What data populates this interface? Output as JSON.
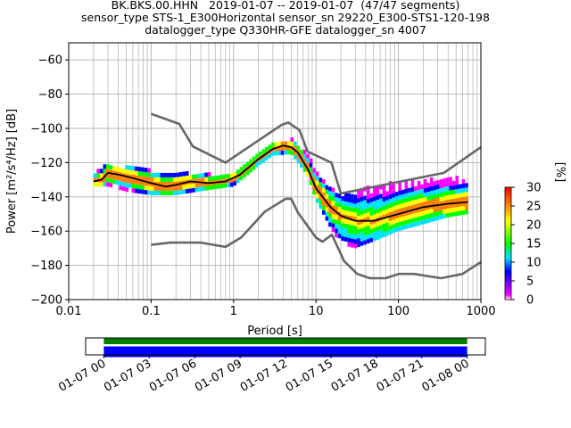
{
  "title_lines": [
    "BK.BKS.00.HHN   2019-01-07 -- 2019-01-07  (47/47 segments)",
    "sensor_type STS-1_E300Horizontal sensor_sn 29220_E300-STS1-120-198",
    "datalogger_type Q330HR-GFE datalogger_sn 4007"
  ],
  "chart_data": [
    {
      "type": "heatmap",
      "xlabel": "Period [s]",
      "ylabel": "Power [m²/s⁴/Hz] [dB]",
      "xscale": "log",
      "xlim": [
        0.01,
        1000
      ],
      "ylim": [
        -200,
        -50
      ],
      "x_ticks": [
        {
          "value": 0.01,
          "label": "0.01"
        },
        {
          "value": 0.1,
          "label": "0.1"
        },
        {
          "value": 1,
          "label": "1"
        },
        {
          "value": 10,
          "label": "10"
        },
        {
          "value": 100,
          "label": "100"
        },
        {
          "value": 1000,
          "label": "1000"
        }
      ],
      "y_ticks": [
        {
          "value": -60,
          "label": "−60"
        },
        {
          "value": -80,
          "label": "−80"
        },
        {
          "value": -100,
          "label": "−100"
        },
        {
          "value": -120,
          "label": "−120"
        },
        {
          "value": -140,
          "label": "−140"
        },
        {
          "value": -160,
          "label": "−160"
        },
        {
          "value": -180,
          "label": "−180"
        },
        {
          "value": -200,
          "label": "−200"
        }
      ],
      "grid": true,
      "colorbar": {
        "label": "[%]",
        "range": [
          0,
          30
        ],
        "ticks": [
          {
            "value": 0,
            "label": "0"
          },
          {
            "value": 5,
            "label": "5"
          },
          {
            "value": 10,
            "label": "10"
          },
          {
            "value": 15,
            "label": "15"
          },
          {
            "value": 20,
            "label": "20"
          },
          {
            "value": 25,
            "label": "25"
          },
          {
            "value": 30,
            "label": "30"
          }
        ],
        "colors": [
          "#ffffff",
          "#ff00ff",
          "#0000ff",
          "#00e0ff",
          "#00ff00",
          "#ffff00",
          "#ff7f00",
          "#ff0000"
        ]
      },
      "noise_model_high": {
        "x": [
          0.1,
          0.22,
          0.32,
          0.8,
          3.8,
          4.6,
          6.3,
          7.9,
          15.4,
          20,
          354.8,
          1000
        ],
        "y": [
          -91.5,
          -97.4,
          -110.5,
          -120,
          -98,
          -96.5,
          -101,
          -113.5,
          -120,
          -138,
          -126,
          -111
        ]
      },
      "noise_model_low": {
        "x": [
          0.1,
          0.17,
          0.4,
          0.8,
          1.24,
          2.4,
          4.3,
          5,
          6,
          10,
          12,
          15.6,
          21.9,
          31.6,
          45,
          70,
          101,
          154,
          328,
          600,
          1000
        ],
        "y": [
          -168,
          -166.7,
          -166.7,
          -169.2,
          -163.7,
          -148.6,
          -141.1,
          -141.1,
          -149,
          -163.8,
          -166.2,
          -162.1,
          -177.5,
          -185,
          -187.5,
          -187.5,
          -185,
          -185,
          -187.5,
          -185,
          -178
        ]
      },
      "mean_curve": {
        "x": [
          0.02,
          0.025,
          0.03,
          0.04,
          0.06,
          0.1,
          0.15,
          0.2,
          0.3,
          0.5,
          0.8,
          1.2,
          2,
          3,
          4,
          5,
          6,
          8,
          10,
          15,
          20,
          30,
          50,
          100,
          200,
          400,
          700
        ],
        "y": [
          -131,
          -130,
          -126,
          -127,
          -129,
          -132,
          -134,
          -133,
          -131,
          -132,
          -131,
          -127,
          -118,
          -112,
          -110,
          -111,
          -114,
          -124,
          -135,
          -146,
          -151,
          -154,
          -154,
          -150,
          -146,
          -144,
          -143
        ]
      },
      "band": {
        "x": [
          0.02,
          0.03,
          0.05,
          0.1,
          0.2,
          0.5,
          1,
          2,
          3,
          5,
          8,
          10,
          15,
          20,
          30,
          50,
          100,
          200,
          400,
          700
        ],
        "upper": [
          -128,
          -122,
          -124,
          -126,
          -127,
          -128,
          -128,
          -116,
          -110,
          -107,
          -116,
          -126,
          -136,
          -140,
          -138,
          -135,
          -132,
          -131,
          -130,
          -130
        ],
        "lower": [
          -134,
          -134,
          -137,
          -139,
          -139,
          -136,
          -134,
          -122,
          -116,
          -115,
          -128,
          -142,
          -158,
          -168,
          -170,
          -166,
          -160,
          -156,
          -152,
          -150
        ]
      }
    },
    {
      "type": "timeline",
      "tick_labels": [
        "01-07 00",
        "01-07 03",
        "01-07 06",
        "01-07 09",
        "01-07 12",
        "01-07 15",
        "01-07 18",
        "01-07 21",
        "01-08 00"
      ],
      "tick_hours": [
        0,
        3,
        6,
        9,
        12,
        15,
        18,
        21,
        24
      ],
      "xlim_hours": [
        -1.2,
        25.2
      ],
      "bars": [
        {
          "start_hour": 0,
          "end_hour": 24,
          "color": "#008000"
        },
        {
          "start_hour": 0,
          "end_hour": 24,
          "color": "#0000ff"
        }
      ]
    }
  ]
}
